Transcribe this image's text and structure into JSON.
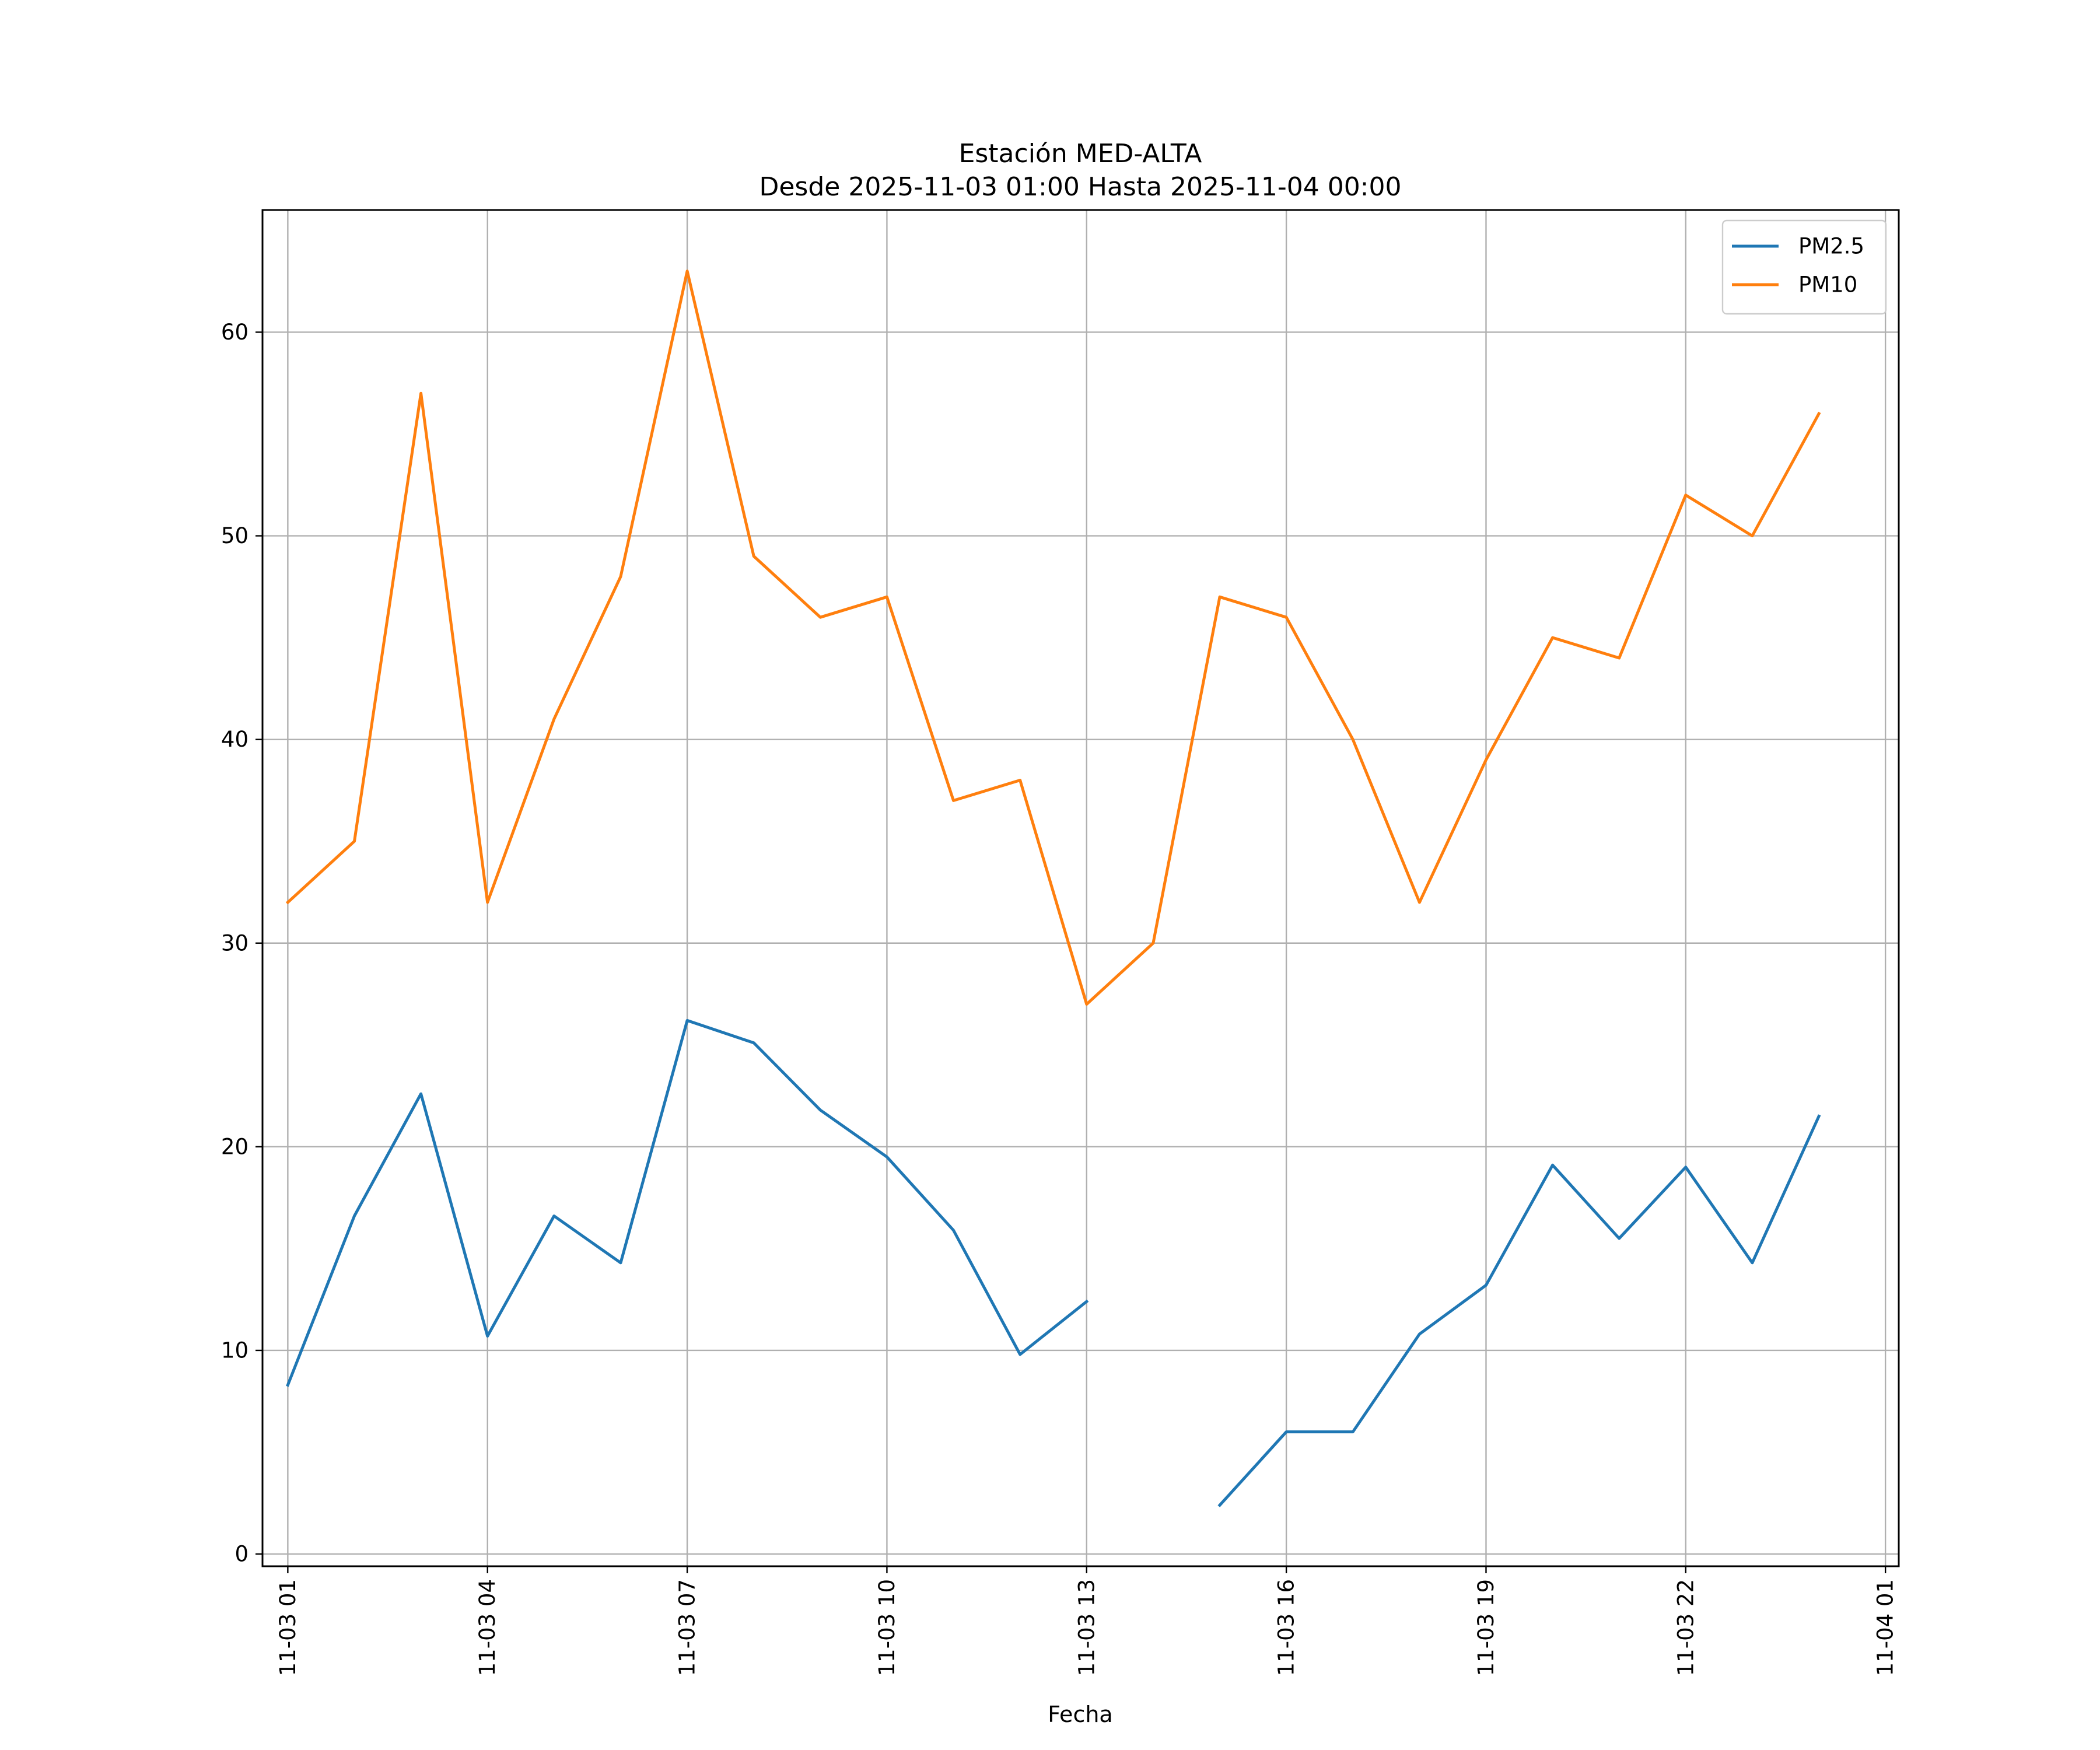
{
  "chart_data": {
    "type": "line",
    "title": "Estación MED-ALTA",
    "subtitle": "Desde 2025-11-03 01:00 Hasta 2025-11-04 00:00",
    "xlabel": "Fecha",
    "ylabel": "",
    "grid": true,
    "legend_position": "top-right",
    "x_unit": "hour",
    "xlim": [
      0.0,
      24.0
    ],
    "ylim": [
      -0.6,
      66.0
    ],
    "x_ticks": [
      {
        "x": 1,
        "label": "11-03 01"
      },
      {
        "x": 4,
        "label": "11-03 04"
      },
      {
        "x": 7,
        "label": "11-03 07"
      },
      {
        "x": 10,
        "label": "11-03 10"
      },
      {
        "x": 13,
        "label": "11-03 13"
      },
      {
        "x": 16,
        "label": "11-03 16"
      },
      {
        "x": 19,
        "label": "11-03 19"
      },
      {
        "x": 22,
        "label": "11-03 22"
      },
      {
        "x": 25,
        "label": "11-04 01"
      }
    ],
    "y_ticks": [
      0,
      10,
      20,
      30,
      40,
      50,
      60
    ],
    "x": [
      1,
      2,
      3,
      4,
      5,
      6,
      7,
      8,
      9,
      10,
      11,
      12,
      13,
      14,
      15,
      16,
      17,
      18,
      19,
      20,
      21,
      22,
      23,
      24
    ],
    "series": [
      {
        "name": "PM2.5",
        "color": "#1f77b4",
        "values": [
          8.3,
          16.6,
          22.6,
          10.7,
          16.6,
          14.3,
          26.2,
          25.1,
          21.8,
          19.5,
          15.9,
          9.8,
          12.4,
          null,
          2.4,
          6.0,
          6.0,
          10.8,
          13.2,
          19.1,
          15.5,
          19.0,
          14.3,
          21.5
        ]
      },
      {
        "name": "PM10",
        "color": "#ff7f0e",
        "values": [
          32,
          35,
          57,
          32,
          41,
          48,
          63,
          49,
          46,
          47,
          37,
          38,
          27,
          30,
          47,
          46,
          40,
          32,
          39,
          45,
          44,
          52,
          50,
          56
        ]
      }
    ]
  }
}
